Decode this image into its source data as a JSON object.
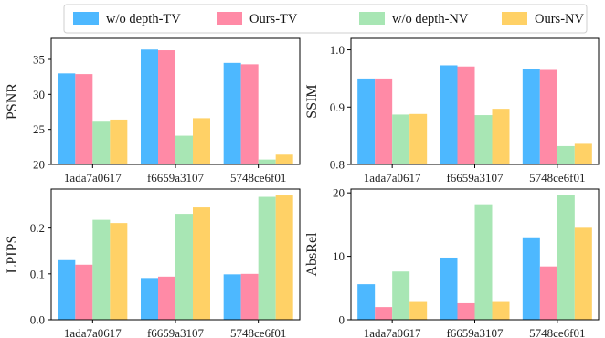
{
  "legend": [
    {
      "label": "w/o depth-TV",
      "color": "#4db8ff"
    },
    {
      "label": "Ours-TV",
      "color": "#ff8aa6"
    },
    {
      "label": "w/o depth-NV",
      "color": "#a8e6b4"
    },
    {
      "label": "Ours-NV",
      "color": "#ffd166"
    }
  ],
  "chart_data": [
    {
      "type": "bar",
      "ylabel": "PSNR",
      "categories": [
        "1ada7a0617",
        "f6659a3107",
        "5748ce6f01"
      ],
      "ylim": [
        20,
        38
      ],
      "yticks": [
        20,
        25,
        30,
        35
      ],
      "series": [
        {
          "name": "w/o depth-TV",
          "values": [
            33.0,
            36.4,
            34.5
          ]
        },
        {
          "name": "Ours-TV",
          "values": [
            32.9,
            36.3,
            34.3
          ]
        },
        {
          "name": "w/o depth-NV",
          "values": [
            26.1,
            24.1,
            20.7
          ]
        },
        {
          "name": "Ours-NV",
          "values": [
            26.4,
            26.6,
            21.4
          ]
        }
      ]
    },
    {
      "type": "bar",
      "ylabel": "SSIM",
      "categories": [
        "1ada7a0617",
        "f6659a3107",
        "5748ce6f01"
      ],
      "ylim": [
        0.8,
        1.02
      ],
      "yticks": [
        "0.8",
        "0.9",
        "1.0"
      ],
      "series": [
        {
          "name": "w/o depth-TV",
          "values": [
            0.95,
            0.973,
            0.967
          ]
        },
        {
          "name": "Ours-TV",
          "values": [
            0.95,
            0.971,
            0.965
          ]
        },
        {
          "name": "w/o depth-NV",
          "values": [
            0.887,
            0.886,
            0.832
          ]
        },
        {
          "name": "Ours-NV",
          "values": [
            0.888,
            0.897,
            0.836
          ]
        }
      ]
    },
    {
      "type": "bar",
      "ylabel": "LPIPS",
      "categories": [
        "1ada7a0617",
        "f6659a3107",
        "5748ce6f01"
      ],
      "ylim": [
        0,
        0.285
      ],
      "yticks": [
        "0.0",
        "0.1",
        "0.2"
      ],
      "series": [
        {
          "name": "w/o depth-TV",
          "values": [
            0.13,
            0.091,
            0.099
          ]
        },
        {
          "name": "Ours-TV",
          "values": [
            0.12,
            0.094,
            0.1
          ]
        },
        {
          "name": "w/o depth-NV",
          "values": [
            0.218,
            0.231,
            0.268
          ]
        },
        {
          "name": "Ours-NV",
          "values": [
            0.211,
            0.245,
            0.271
          ]
        }
      ]
    },
    {
      "type": "bar",
      "ylabel": "AbsRel",
      "categories": [
        "1ada7a0617",
        "f6659a3107",
        "5748ce6f01"
      ],
      "ylim": [
        0,
        20.6
      ],
      "yticks": [
        0,
        10,
        20
      ],
      "series": [
        {
          "name": "w/o depth-TV",
          "values": [
            5.6,
            9.8,
            13.0
          ]
        },
        {
          "name": "Ours-TV",
          "values": [
            2.0,
            2.6,
            8.4
          ]
        },
        {
          "name": "w/o depth-NV",
          "values": [
            7.6,
            18.2,
            19.7
          ]
        },
        {
          "name": "Ours-NV",
          "values": [
            2.8,
            2.8,
            14.5
          ]
        }
      ]
    }
  ]
}
